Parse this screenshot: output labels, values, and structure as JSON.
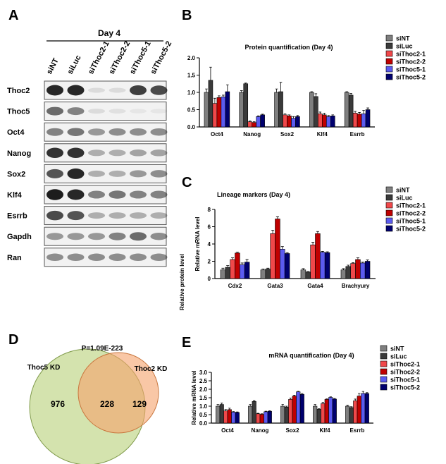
{
  "panel_labels": [
    "A",
    "B",
    "C",
    "D",
    "E"
  ],
  "blot": {
    "title": "Day 4",
    "lanes": [
      "siNT",
      "siLuc",
      "siThoc2-1",
      "siThoc2-2",
      "siThoc5-1",
      "siThoc5-2"
    ],
    "rows": [
      "Thoc2",
      "Thoc5",
      "Oct4",
      "Nanog",
      "Sox2",
      "Klf4",
      "Esrrb",
      "Gapdh",
      "Ran"
    ]
  },
  "venn": {
    "p_value": "P=1.09E-223",
    "sets": [
      {
        "label": "Thoc5 KD",
        "only": 976
      },
      {
        "label": "Thoc2 KD",
        "only": 129
      }
    ],
    "overlap": 228
  },
  "chart_data": [
    {
      "type": "bar",
      "title": "Protein quantification (Day 4)",
      "y_label": "Relative protein level",
      "categories": [
        "Oct4",
        "Nanog",
        "Sox2",
        "Klf4",
        "Esrrb"
      ],
      "ylim": [
        0,
        2
      ],
      "yticks": [
        {
          "value": 0,
          "label": "0.0"
        },
        0.5,
        {
          "value": 1,
          "label": "1.0"
        },
        1.5,
        {
          "value": 2,
          "label": "2.0"
        }
      ],
      "legend": "upper right",
      "series": [
        {
          "name": "siNT",
          "color": "#7f7f7f",
          "values": [
            1.0,
            1.0,
            1.0,
            1.0,
            1.0
          ],
          "errors": [
            0.1,
            0.05,
            0.1,
            0.02,
            0.02
          ]
        },
        {
          "name": "siLuc",
          "color": "#3a3a3a",
          "values": [
            1.35,
            1.25,
            1.02,
            0.88,
            0.92
          ],
          "errors": [
            0.38,
            0.02,
            0.27,
            0.08,
            0.05
          ]
        },
        {
          "name": "siThoc2-1",
          "color": "#f0484a",
          "values": [
            0.68,
            0.15,
            0.35,
            0.38,
            0.4
          ],
          "errors": [
            0.15,
            0.02,
            0.03,
            0.05,
            0.05
          ]
        },
        {
          "name": "siThoc2-2",
          "color": "#c00000",
          "values": [
            0.85,
            0.13,
            0.32,
            0.35,
            0.37
          ],
          "errors": [
            0.05,
            0.02,
            0.03,
            0.05,
            0.05
          ]
        },
        {
          "name": "siThoc5-1",
          "color": "#5b5bf0",
          "values": [
            0.87,
            0.3,
            0.25,
            0.3,
            0.38
          ],
          "errors": [
            0.05,
            0.02,
            0.05,
            0.03,
            0.1
          ]
        },
        {
          "name": "siThoc5-2",
          "color": "#00006e",
          "values": [
            1.02,
            0.35,
            0.3,
            0.32,
            0.5
          ],
          "errors": [
            0.2,
            0.02,
            0.03,
            0.03,
            0.05
          ]
        }
      ]
    },
    {
      "type": "bar",
      "title": "Lineage markers (Day 4)",
      "y_label": "Relative mRNA level",
      "categories": [
        "Cdx2",
        "Gata3",
        "Gata4",
        "Brachyury"
      ],
      "ylim": [
        0,
        8
      ],
      "yticks": [
        0,
        2,
        4,
        6,
        8
      ],
      "legend": "upper right",
      "series": [
        {
          "name": "siNT",
          "color": "#7f7f7f",
          "values": [
            1.0,
            1.0,
            1.0,
            1.0
          ],
          "errors": [
            0.2,
            0.1,
            0.15,
            0.15
          ]
        },
        {
          "name": "siLuc",
          "color": "#3a3a3a",
          "values": [
            1.3,
            1.1,
            0.75,
            1.4
          ],
          "errors": [
            0.2,
            0.1,
            0.05,
            0.15
          ]
        },
        {
          "name": "siThoc2-1",
          "color": "#f0484a",
          "values": [
            2.2,
            5.2,
            3.9,
            1.75
          ],
          "errors": [
            0.2,
            0.4,
            0.3,
            0.1
          ]
        },
        {
          "name": "siThoc2-2",
          "color": "#c00000",
          "values": [
            2.95,
            6.9,
            5.2,
            2.2
          ],
          "errors": [
            0.1,
            0.25,
            0.25,
            0.2
          ]
        },
        {
          "name": "siThoc5-1",
          "color": "#5b5bf0",
          "values": [
            1.6,
            3.4,
            3.05,
            1.8
          ],
          "errors": [
            0.2,
            0.3,
            0.1,
            0.1
          ]
        },
        {
          "name": "siThoc5-2",
          "color": "#00006e",
          "values": [
            1.9,
            2.9,
            3.0,
            2.0
          ],
          "errors": [
            0.3,
            0.1,
            0.1,
            0.15
          ]
        }
      ]
    },
    {
      "type": "bar",
      "title": "mRNA quantification (Day 4)",
      "y_label": "Relative mRNA level",
      "categories": [
        "Oct4",
        "Nanog",
        "Sox2",
        "Klf4",
        "Esrrb"
      ],
      "ylim": [
        0,
        3
      ],
      "yticks": [
        {
          "value": 0,
          "label": "0.0"
        },
        0.5,
        {
          "value": 1,
          "label": "1.0"
        },
        1.5,
        {
          "value": 2,
          "label": "2.0"
        },
        2.5,
        {
          "value": 3,
          "label": "3.0"
        }
      ],
      "legend": "upper right",
      "series": [
        {
          "name": "siNT",
          "color": "#7f7f7f",
          "values": [
            1.0,
            1.0,
            1.0,
            1.0,
            1.0
          ],
          "errors": [
            0.1,
            0.1,
            0.1,
            0.1,
            0.05
          ]
        },
        {
          "name": "siLuc",
          "color": "#3a3a3a",
          "values": [
            1.1,
            1.28,
            0.95,
            0.82,
            0.92
          ],
          "errors": [
            0.08,
            0.05,
            0.05,
            0.03,
            0.05
          ]
        },
        {
          "name": "siThoc2-1",
          "color": "#f0484a",
          "values": [
            0.72,
            0.55,
            1.4,
            1.15,
            1.32
          ],
          "errors": [
            0.08,
            0.03,
            0.08,
            0.08,
            0.1
          ]
        },
        {
          "name": "siThoc2-2",
          "color": "#c00000",
          "values": [
            0.8,
            0.52,
            1.6,
            1.4,
            1.6
          ],
          "errors": [
            0.08,
            0.03,
            0.05,
            0.03,
            0.15
          ]
        },
        {
          "name": "siThoc5-1",
          "color": "#5b5bf0",
          "values": [
            0.65,
            0.67,
            1.85,
            1.52,
            1.75
          ],
          "errors": [
            0.03,
            0.03,
            0.03,
            0.03,
            0.12
          ]
        },
        {
          "name": "siThoc5-2",
          "color": "#00006e",
          "values": [
            0.63,
            0.7,
            1.7,
            1.42,
            1.75
          ],
          "errors": [
            0.03,
            0.03,
            0.05,
            0.03,
            0.05
          ]
        }
      ]
    }
  ]
}
